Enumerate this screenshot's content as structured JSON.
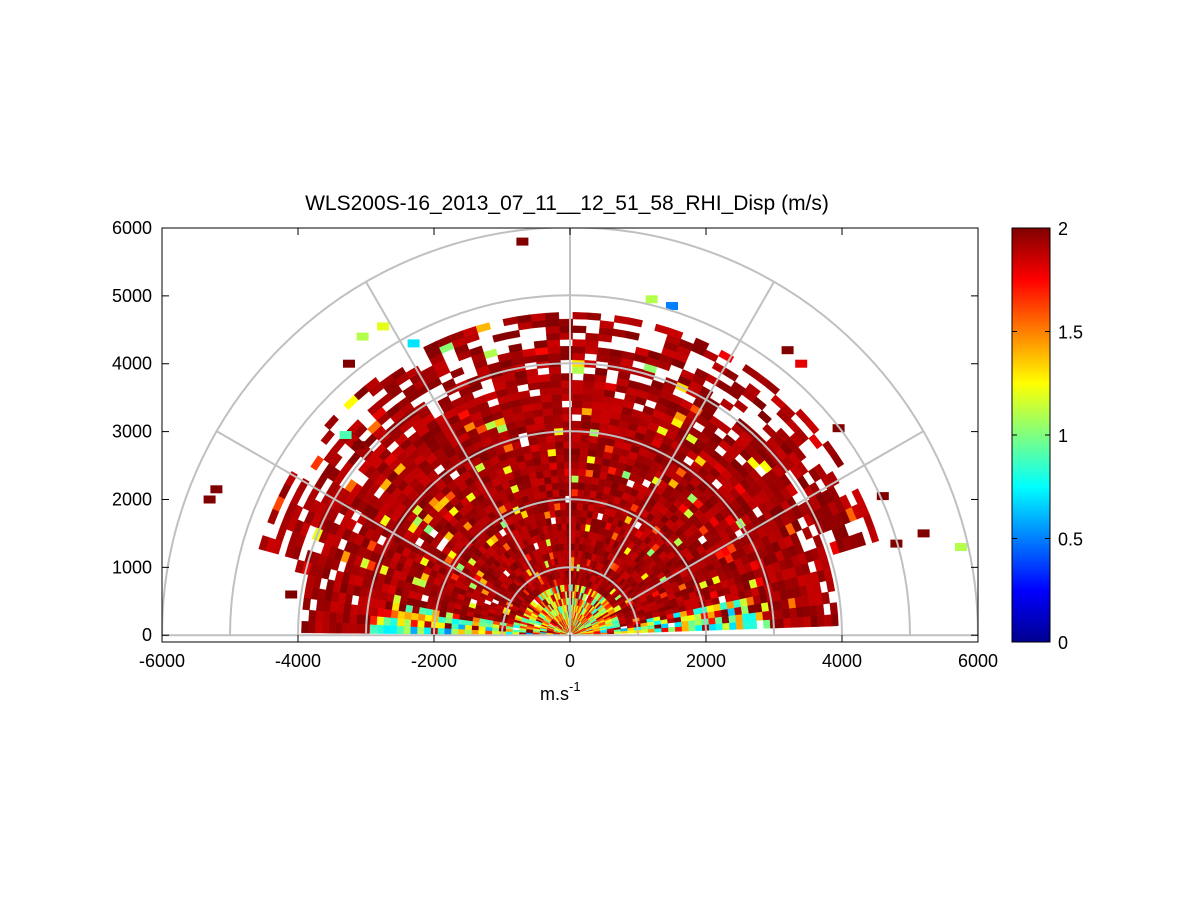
{
  "chart_data": {
    "type": "heatmap",
    "title": "WLS200S-16_2013_07_11__12_51_58_RHI_Disp (m/s)",
    "xlabel": {
      "base": "m.s",
      "superscript": "-1"
    },
    "ylabel": "",
    "xlim": [
      -6000,
      6000
    ],
    "ylim": [
      -100,
      6000
    ],
    "x_ticks": [
      "-6000",
      "-4000",
      "-2000",
      "0",
      "2000",
      "4000",
      "6000"
    ],
    "y_ticks": [
      "0",
      "1000",
      "2000",
      "3000",
      "4000",
      "5000",
      "6000"
    ],
    "grid": "polar",
    "polar_rings": [
      1000,
      2000,
      3000,
      4000,
      5000,
      6000
    ],
    "polar_spokes_deg": [
      30,
      60,
      90,
      120,
      150
    ],
    "colorbar": {
      "colormap": "jet",
      "range": [
        0,
        2
      ],
      "ticks": [
        "0",
        "0.5",
        "1",
        "1.5",
        "2"
      ],
      "placement": "right"
    },
    "data_extent_m": 4700,
    "cells": [
      {
        "x": -5300,
        "y": 2000,
        "value": 2
      },
      {
        "x": -5200,
        "y": 2150,
        "value": 2
      },
      {
        "x": -4100,
        "y": 600,
        "value": 2
      },
      {
        "x": -3300,
        "y": 2950,
        "value": 0.9
      },
      {
        "x": -3100,
        "y": 2800,
        "value": 2
      },
      {
        "x": -3250,
        "y": 4000,
        "value": 2
      },
      {
        "x": -3050,
        "y": 4400,
        "value": 1.1
      },
      {
        "x": -2750,
        "y": 4550,
        "value": 1.2
      },
      {
        "x": -2300,
        "y": 4300,
        "value": 0.7
      },
      {
        "x": -700,
        "y": 5800,
        "value": 2
      },
      {
        "x": 1200,
        "y": 4950,
        "value": 1.1
      },
      {
        "x": 1500,
        "y": 4850,
        "value": 0.5
      },
      {
        "x": 3400,
        "y": 4000,
        "value": 1.8
      },
      {
        "x": 3200,
        "y": 4200,
        "value": 2
      },
      {
        "x": 3950,
        "y": 3050,
        "value": 2
      },
      {
        "x": 4600,
        "y": 2050,
        "value": 2
      },
      {
        "x": 5200,
        "y": 1500,
        "value": 2
      },
      {
        "x": 5750,
        "y": 1300,
        "value": 1.1
      },
      {
        "x": 4800,
        "y": 1350,
        "value": 2
      }
    ]
  }
}
